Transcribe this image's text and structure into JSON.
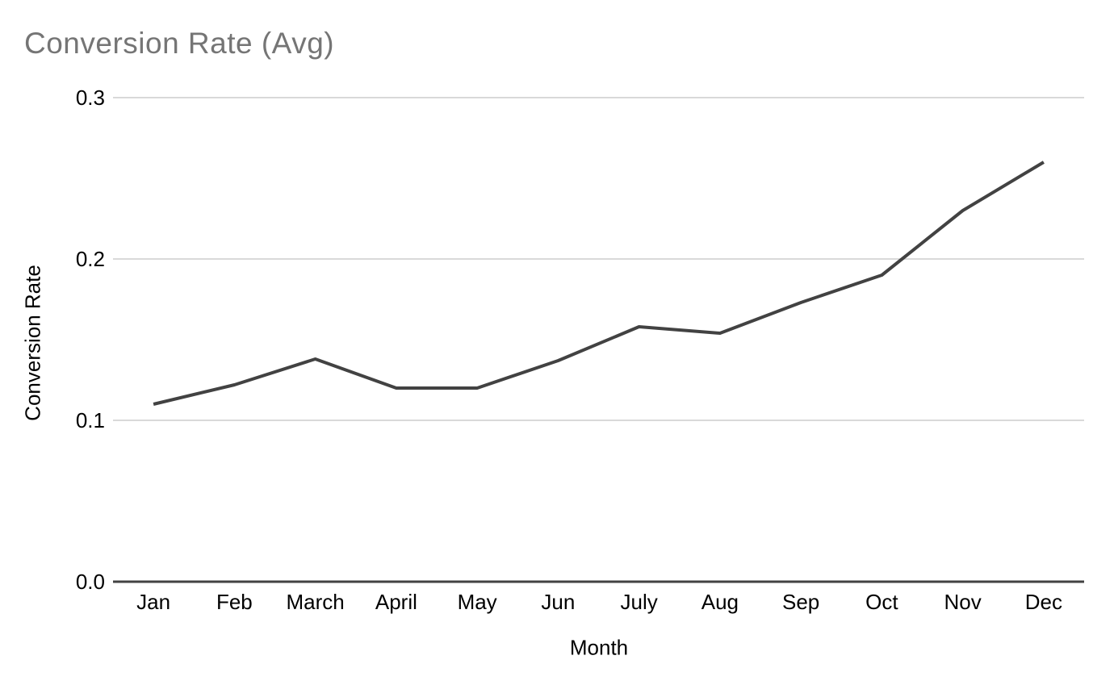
{
  "colors": {
    "background": "#ffffff",
    "title_text": "#757575",
    "axis_text": "#000000",
    "gridline": "#d9d9d9",
    "axis_line": "#424242",
    "series_line": "#424242"
  },
  "chart_data": {
    "type": "line",
    "title": "Conversion Rate (Avg)",
    "xlabel": "Month",
    "ylabel": "Conversion Rate",
    "categories": [
      "Jan",
      "Feb",
      "March",
      "April",
      "May",
      "Jun",
      "July",
      "Aug",
      "Sep",
      "Oct",
      "Nov",
      "Dec"
    ],
    "series": [
      {
        "name": "Conversion Rate (Avg)",
        "values": [
          0.11,
          0.122,
          0.138,
          0.12,
          0.12,
          0.137,
          0.158,
          0.154,
          0.173,
          0.19,
          0.23,
          0.26
        ]
      }
    ],
    "ylim": [
      0,
      0.3
    ],
    "yticks": [
      0,
      0.1,
      0.2,
      0.3
    ],
    "ytick_labels": [
      "0.0",
      "0.1",
      "0.2",
      "0.3"
    ],
    "grid": "horizontal",
    "legend": "none"
  }
}
